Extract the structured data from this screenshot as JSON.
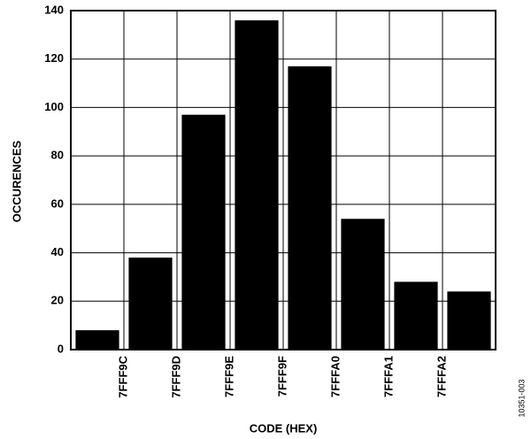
{
  "chart_data": {
    "type": "bar",
    "x_label": "CODE (HEX)",
    "y_label": "OCCURENCES",
    "figure_id": "10351-003",
    "categories": [
      "7FFF9C",
      "7FFF9D",
      "7FFF9E",
      "7FFF9F",
      "7FFFA0",
      "7FFFA1",
      "7FFFA2",
      null
    ],
    "values": [
      8,
      38,
      97,
      136,
      117,
      54,
      28,
      24
    ],
    "color": "#000000",
    "ylim": [
      0,
      140
    ],
    "yticks": [
      0,
      20,
      40,
      60,
      80,
      100,
      120,
      140
    ],
    "grid": true
  }
}
